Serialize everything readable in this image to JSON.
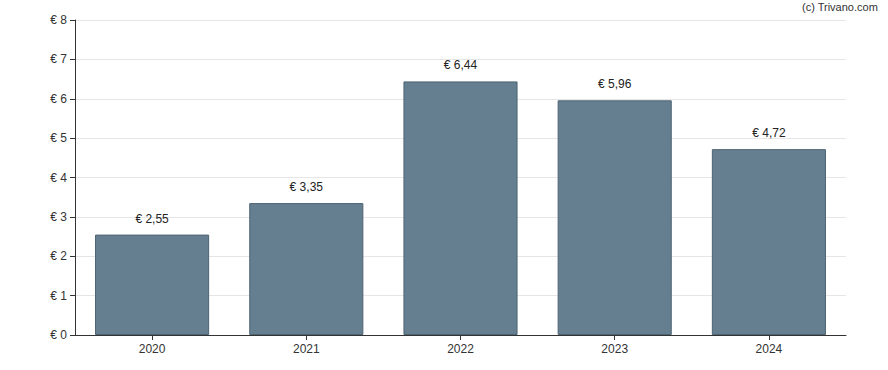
{
  "chart_data": {
    "type": "bar",
    "annotations": [
      "(c) Trivano.com"
    ],
    "categories": [
      "2020",
      "2021",
      "2022",
      "2023",
      "2024"
    ],
    "values": [
      2.55,
      3.35,
      6.44,
      5.96,
      4.72
    ],
    "value_labels": [
      "€ 2,55",
      "€ 3,35",
      "€ 6,44",
      "€ 5,96",
      "€ 4,72"
    ],
    "data_labels": true,
    "color": "#657f90",
    "ylim": [
      0,
      8
    ],
    "yticks": [
      {
        "value": 0,
        "label": "€ 0"
      },
      {
        "value": 1,
        "label": "€ 1"
      },
      {
        "value": 2,
        "label": "€ 2"
      },
      {
        "value": 3,
        "label": "€ 3"
      },
      {
        "value": 4,
        "label": "€ 4"
      },
      {
        "value": 5,
        "label": "€ 5"
      },
      {
        "value": 6,
        "label": "€ 6"
      },
      {
        "value": 7,
        "label": "€ 7"
      },
      {
        "value": 8,
        "label": "€ 8"
      }
    ],
    "grid": true
  }
}
